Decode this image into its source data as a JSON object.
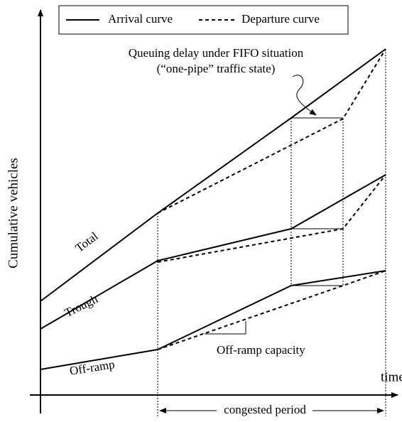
{
  "legend": {
    "arrival": "Arrival curve",
    "departure": "Departure curve"
  },
  "axes": {
    "y_label": "Cumulative vehicles",
    "x_label": "time"
  },
  "annotations": {
    "queuing_line1": "Queuing delay under FIFO situation",
    "queuing_line2": "(“one-pipe” traffic state)",
    "capacity": "Off-ramp capacity",
    "period": "congested period"
  },
  "curves": {
    "total": "Total",
    "trough": "Trough",
    "off_ramp": "Off-ramp"
  }
}
